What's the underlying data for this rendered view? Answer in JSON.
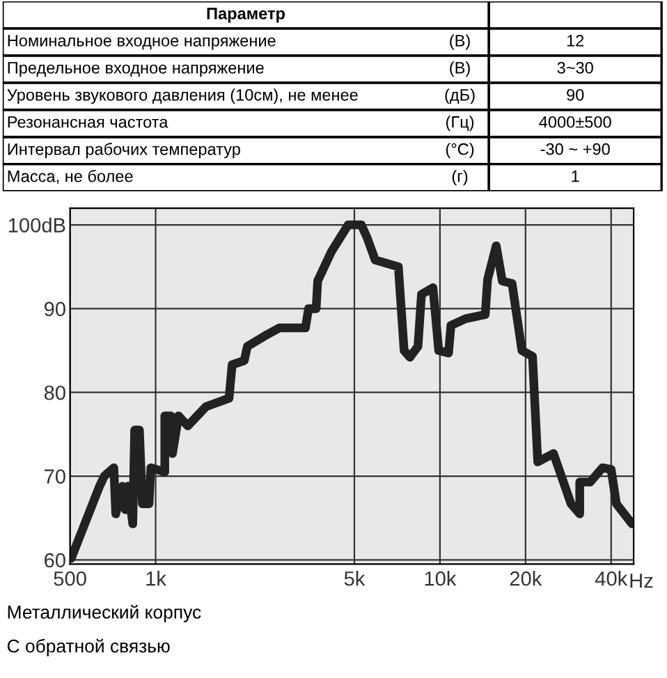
{
  "chart_data": [
    {
      "type": "other",
      "annotations": [
        "Параметр",
        "Номинальное входное напряжение",
        "(В)",
        "12",
        "Предельное входное напряжение",
        "(В)",
        "3~30",
        "Уровень звукового давления (10см), не менее",
        "(дБ)",
        "90",
        "Резонансная частота",
        "(Гц)",
        "4000±500",
        "Интервал рабочих температур",
        "(°C)",
        "-30 ~ +90",
        "Масса, не более",
        "(г)",
        "1"
      ]
    },
    {
      "type": "line",
      "log": "x",
      "grid": true,
      "xlim": [
        500,
        48000
      ],
      "ylim": [
        59.5,
        102
      ],
      "xticks": [
        500,
        {
          "value": 1000,
          "label": "1k"
        },
        {
          "value": 5000,
          "label": "5k"
        },
        {
          "value": 10000,
          "label": "10k"
        },
        {
          "value": 20000,
          "label": "20k"
        },
        {
          "value": 40000,
          "label": "40k"
        }
      ],
      "xlabel": "Hz",
      "yticks": [
        60,
        70,
        80,
        90,
        {
          "value": 100,
          "label": "100dB"
        }
      ],
      "annotations": [
        "Металлический корпус",
        "С обратной связью"
      ],
      "series": [
        {
          "color": "#222222",
          "x": [
            505,
            635,
            660,
            713,
            724,
            764,
            782,
            800,
            831,
            844,
            877,
            898,
            948,
            962,
            1077,
            1077,
            1132,
            1146,
            1204,
            1297,
            1504,
            1812,
            1858,
            2050,
            2102,
            2409,
            2726,
            3365,
            3450,
            3669,
            3715,
            4150,
            4754,
            5290,
            5540,
            5920,
            7140,
            7480,
            7840,
            8370,
            8610,
            9450,
            9900,
            10720,
            10930,
            12310,
            14430,
            14710,
            15770,
            16570,
            17930,
            19420,
            21160,
            22080,
            25080,
            28900,
            31020,
            31020,
            33760,
            37280,
            40000,
            41740,
            47400
          ],
          "values": [
            60.2,
            68.8,
            70,
            71,
            65.5,
            68.8,
            66,
            68.8,
            64.3,
            75.5,
            75.5,
            66.7,
            66.7,
            71,
            70.5,
            77.2,
            77.2,
            72.7,
            77.2,
            76,
            78.3,
            79.3,
            83.3,
            83.8,
            85.5,
            86.7,
            87.7,
            87.7,
            90,
            90,
            93.3,
            96.8,
            100,
            100,
            98.5,
            95.8,
            95,
            85,
            84.2,
            85.5,
            91.7,
            92.5,
            85,
            84.7,
            88,
            88.8,
            89.3,
            93.5,
            97.5,
            93.3,
            93,
            85,
            84.3,
            71.7,
            72.7,
            66.7,
            65.5,
            69.3,
            69.3,
            71,
            70.8,
            66.7,
            64.3
          ]
        }
      ]
    }
  ]
}
